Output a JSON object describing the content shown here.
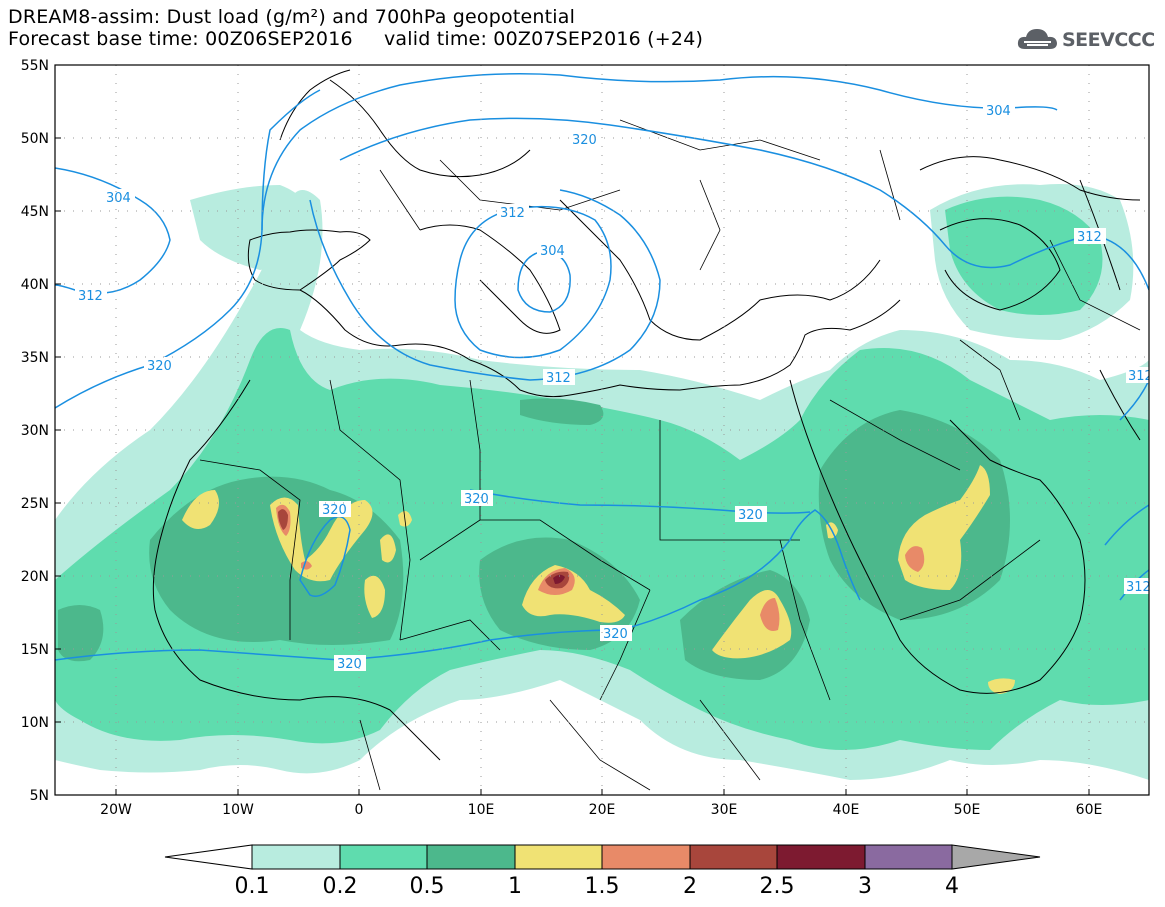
{
  "header": {
    "title_line1": "DREAM8-assim: Dust load (g/m²) and 700hPa geopotential",
    "title_line2": "Forecast base time: 00Z06SEP2016     valid time: 00Z07SEP2016 (+24)"
  },
  "logo": {
    "text": "SEEVCCC",
    "icon": "cloud-icon"
  },
  "map": {
    "lat_labels": [
      "55N",
      "50N",
      "45N",
      "40N",
      "35N",
      "30N",
      "25N",
      "20N",
      "15N",
      "10N",
      "5N"
    ],
    "lon_labels": [
      "20W",
      "10W",
      "0",
      "10E",
      "20E",
      "30E",
      "40E",
      "50E",
      "60E"
    ],
    "contour_labels": [
      "304",
      "312",
      "320",
      "312",
      "304",
      "320",
      "312",
      "320",
      "320",
      "320",
      "304",
      "312",
      "320",
      "320",
      "312",
      "312"
    ],
    "contour_color": "#1a8fe0"
  },
  "colorbar": {
    "ticks": [
      "0.1",
      "0.2",
      "0.5",
      "1",
      "1.5",
      "2",
      "2.5",
      "3",
      "4"
    ],
    "colors": [
      "#ffffff",
      "#b8ecdf",
      "#5fdcae",
      "#4cb88c",
      "#f0e274",
      "#e88a68",
      "#a8463c",
      "#7d1a30",
      "#8a6aa0",
      "#a8a8a8"
    ]
  }
}
